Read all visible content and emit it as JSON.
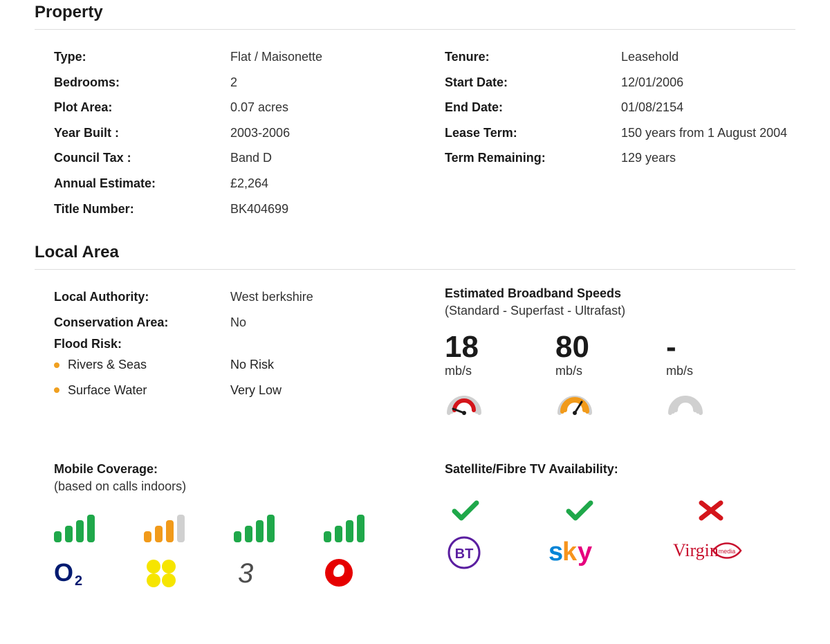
{
  "colors": {
    "text": "#1a1a1a",
    "muted": "#333333",
    "hr": "#dddddd",
    "bullet": "#f0a020",
    "green": "#1fa84a",
    "orange": "#f19a1a",
    "grey": "#d0d0d0",
    "red": "#d4151b",
    "bt_purple": "#5a1ea0",
    "sky_blue": "#0084d6",
    "sky_orange": "#f7941d",
    "sky_pink": "#e6007e",
    "virgin_red": "#c8102e",
    "o2_blue": "#001a70",
    "ee_yellow": "#f6e500",
    "three_grey": "#4d4d4d",
    "vodafone_red": "#e60000"
  },
  "property": {
    "heading": "Property",
    "left": [
      {
        "label": "Type:",
        "value": "Flat / Maisonette"
      },
      {
        "label": "Bedrooms:",
        "value": "2"
      },
      {
        "label": "Plot Area:",
        "value": "0.07 acres"
      },
      {
        "label": "Year Built :",
        "value": "2003-2006"
      },
      {
        "label": "Council Tax :",
        "value": "Band D"
      },
      {
        "label": "Annual Estimate:",
        "value": "£2,264"
      },
      {
        "label": "Title Number:",
        "value": "BK404699"
      }
    ],
    "right": [
      {
        "label": "Tenure:",
        "value": "Leasehold"
      },
      {
        "label": "Start Date:",
        "value": "12/01/2006"
      },
      {
        "label": "End Date:",
        "value": "01/08/2154"
      },
      {
        "label": "Lease Term:",
        "value": "150 years from 1 August 2004"
      },
      {
        "label": "Term Remaining:",
        "value": "129 years"
      }
    ]
  },
  "local": {
    "heading": "Local Area",
    "left_rows": [
      {
        "label": "Local Authority:",
        "value": "West berkshire"
      },
      {
        "label": "Conservation Area:",
        "value": "No"
      }
    ],
    "flood_heading": "Flood Risk:",
    "flood": [
      {
        "label": "Rivers & Seas",
        "value": "No Risk"
      },
      {
        "label": "Surface Water",
        "value": "Very Low"
      }
    ],
    "broadband": {
      "title": "Estimated Broadband Speeds",
      "subtitle": "(Standard - Superfast - Ultrafast)",
      "unit": "mb/s",
      "speeds": [
        {
          "value": "18",
          "state": "low"
        },
        {
          "value": "80",
          "state": "mid"
        },
        {
          "value": "-",
          "state": "none"
        }
      ]
    },
    "mobile": {
      "title": "Mobile Coverage:",
      "subtitle": "(based on calls indoors)",
      "carriers": [
        {
          "name": "O2",
          "bars": [
            1,
            1,
            1,
            1
          ],
          "bar_color": "green"
        },
        {
          "name": "EE",
          "bars": [
            1,
            1,
            1,
            0
          ],
          "bar_color": "orange"
        },
        {
          "name": "Three",
          "bars": [
            1,
            1,
            1,
            1
          ],
          "bar_color": "green"
        },
        {
          "name": "Vodafone",
          "bars": [
            1,
            1,
            1,
            1
          ],
          "bar_color": "green"
        }
      ]
    },
    "tv": {
      "title": "Satellite/Fibre TV Availability:",
      "providers": [
        {
          "name": "BT",
          "available": true
        },
        {
          "name": "Sky",
          "available": true
        },
        {
          "name": "Virgin",
          "available": false
        }
      ]
    }
  }
}
